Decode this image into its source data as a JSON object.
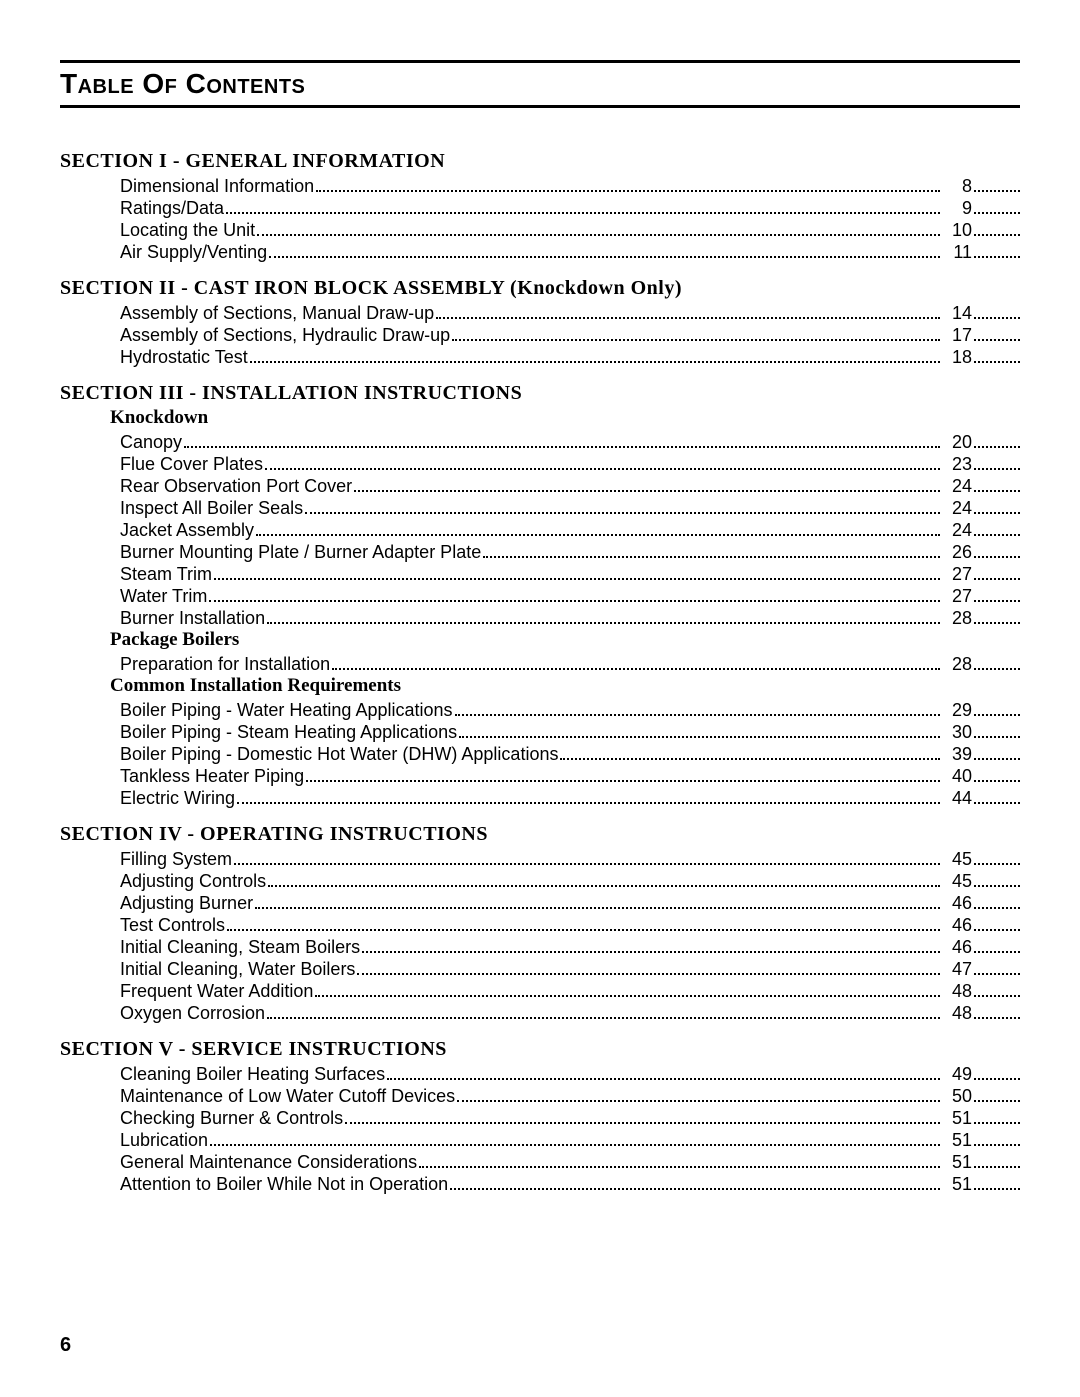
{
  "title": "Table Of Contents",
  "page_number": "6",
  "colors": {
    "text": "#000000",
    "background": "#ffffff",
    "rule": "#000000"
  },
  "sections": [
    {
      "heading": "SECTION  I  -  GENERAL  INFORMATION",
      "groups": [
        {
          "items": [
            {
              "label": "Dimensional Information",
              "page": "8"
            },
            {
              "label": "Ratings/Data",
              "page": "9"
            },
            {
              "label": "Locating the Unit",
              "page": "10"
            },
            {
              "label": "Air Supply/Venting",
              "page": "11"
            }
          ]
        }
      ]
    },
    {
      "heading": "SECTION  II  -  CAST  IRON  BLOCK  ASSEMBLY  (Knockdown  Only)",
      "groups": [
        {
          "items": [
            {
              "label": "Assembly of Sections, Manual Draw-up",
              "page": "14"
            },
            {
              "label": "Assembly of Sections, Hydraulic Draw-up",
              "page": "17"
            },
            {
              "label": "Hydrostatic Test",
              "page": "18"
            }
          ]
        }
      ]
    },
    {
      "heading": "SECTION  III  -  INSTALLATION  INSTRUCTIONS",
      "groups": [
        {
          "subheading": "Knockdown",
          "items": [
            {
              "label": "Canopy",
              "page": "20"
            },
            {
              "label": "Flue Cover Plates",
              "page": "23"
            },
            {
              "label": "Rear Observation Port Cover",
              "page": "24"
            },
            {
              "label": "Inspect All Boiler Seals",
              "page": "24"
            },
            {
              "label": "Jacket Assembly",
              "page": "24"
            },
            {
              "label": "Burner Mounting Plate / Burner Adapter Plate",
              "page": "26"
            },
            {
              "label": "Steam Trim",
              "page": "27"
            },
            {
              "label": "Water Trim",
              "page": "27"
            },
            {
              "label": "Burner Installation",
              "page": "28"
            }
          ]
        },
        {
          "subheading": "Package Boilers",
          "items": [
            {
              "label": "Preparation for Installation",
              "page": "28"
            }
          ]
        },
        {
          "subheading": "Common Installation Requirements",
          "items": [
            {
              "label": "Boiler Piping - Water Heating Applications",
              "page": "29"
            },
            {
              "label": "Boiler Piping - Steam Heating Applications",
              "page": "30"
            },
            {
              "label": "Boiler Piping - Domestic Hot Water (DHW) Applications",
              "page": "39"
            },
            {
              "label": "Tankless Heater Piping",
              "page": "40"
            },
            {
              "label": "Electric Wiring",
              "page": "44"
            }
          ]
        }
      ]
    },
    {
      "heading": "SECTION  IV  -  OPERATING  INSTRUCTIONS",
      "groups": [
        {
          "items": [
            {
              "label": "Filling System",
              "page": "45"
            },
            {
              "label": "Adjusting Controls",
              "page": "45"
            },
            {
              "label": "Adjusting Burner",
              "page": "46"
            },
            {
              "label": "Test Controls",
              "page": "46"
            },
            {
              "label": "Initial Cleaning, Steam Boilers",
              "page": "46"
            },
            {
              "label": "Initial Cleaning, Water Boilers",
              "page": "47"
            },
            {
              "label": "Frequent Water Addition",
              "page": "48"
            },
            {
              "label": "Oxygen Corrosion",
              "page": "48"
            }
          ]
        }
      ]
    },
    {
      "heading": "SECTION  V  -  SERVICE  INSTRUCTIONS",
      "groups": [
        {
          "items": [
            {
              "label": "Cleaning Boiler Heating Surfaces",
              "page": "49"
            },
            {
              "label": "Maintenance of Low Water Cutoff Devices",
              "page": "50"
            },
            {
              "label": "Checking Burner & Controls",
              "page": "51"
            },
            {
              "label": "Lubrication",
              "page": "51"
            },
            {
              "label": "General Maintenance Considerations",
              "page": "51"
            },
            {
              "label": "Attention to Boiler While Not in Operation",
              "page": "51"
            }
          ]
        }
      ]
    }
  ]
}
